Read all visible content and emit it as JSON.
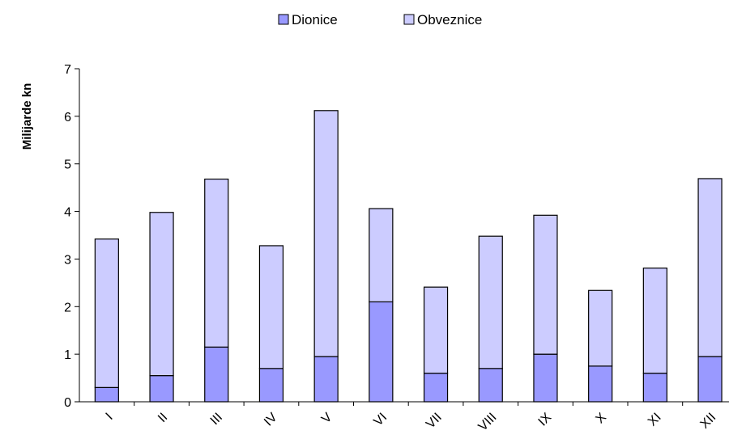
{
  "chart_data": {
    "type": "bar",
    "stacked": true,
    "title": "",
    "xlabel": "",
    "ylabel": "Milijarde kn",
    "ylim": [
      0,
      7
    ],
    "yticks": [
      0,
      1,
      2,
      3,
      4,
      5,
      6,
      7
    ],
    "grid": false,
    "legend_position": "top-center",
    "categories": [
      "I",
      "II",
      "III",
      "IV",
      "V",
      "VI",
      "VII",
      "VIII",
      "IX",
      "X",
      "XI",
      "XII"
    ],
    "series": [
      {
        "name": "Dionice",
        "color": "#9999ff",
        "values": [
          0.3,
          0.55,
          1.15,
          0.7,
          0.95,
          2.1,
          0.6,
          0.7,
          1.0,
          0.75,
          0.6,
          0.95
        ]
      },
      {
        "name": "Obveznice",
        "color": "#ccccff",
        "values": [
          3.12,
          3.43,
          3.53,
          2.58,
          5.17,
          1.96,
          1.81,
          2.78,
          2.92,
          1.59,
          2.21,
          3.74
        ]
      }
    ]
  }
}
